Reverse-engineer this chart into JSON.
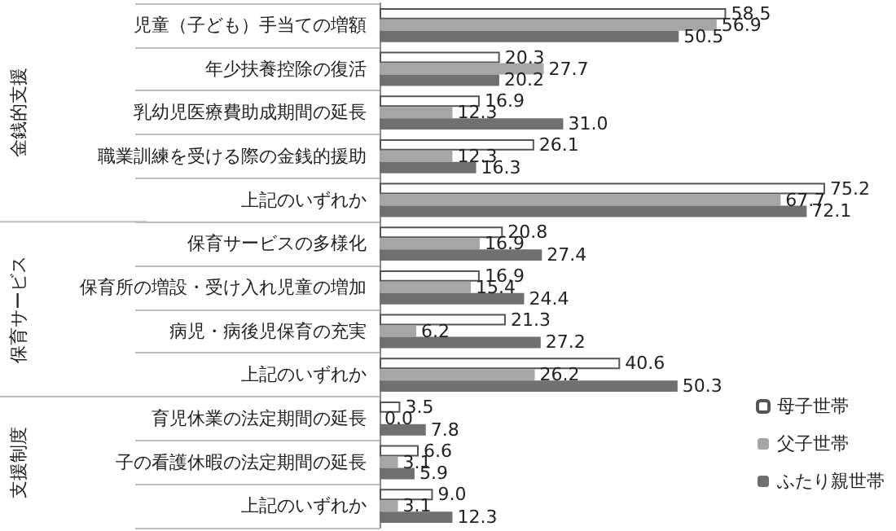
{
  "chart_data": {
    "type": "bar",
    "orientation": "horizontal",
    "grid": false,
    "legend": "bottom right",
    "categories": [
      "児童（子ども）手当ての増額",
      "年少扶養控除の復活",
      "乳幼児医療費助成期間の延長",
      "職業訓練を受ける際の金銭的援助",
      "上記のいずれか",
      "保育サービスの多様化",
      "保育所の増設・受け入れ児童の増加",
      "病児・病後児保育の充実",
      "上記のいずれか",
      "育児休業の法定期間の延長",
      "子の看護休暇の法定期間の延長",
      "上記のいずれか"
    ],
    "series": [
      {
        "name": "母子世帯",
        "color": "#ffffff",
        "values": [
          58.5,
          20.3,
          16.9,
          26.1,
          75.2,
          20.8,
          16.9,
          21.3,
          40.6,
          3.5,
          6.6,
          9.0
        ],
        "value_labels": [
          "58.5",
          "20.3",
          "16.9",
          "26.1",
          "75.2",
          "20.8",
          "16.9",
          "21.3",
          "40.6",
          "3.5",
          "6.6",
          "9.0"
        ]
      },
      {
        "name": "父子世帯",
        "color": "#a6a6a6",
        "values": [
          56.9,
          27.7,
          12.3,
          12.3,
          67.7,
          16.9,
          15.4,
          6.2,
          26.2,
          0.0,
          3.1,
          3.1
        ],
        "value_labels": [
          "56.9",
          "27.7",
          "12.3",
          "12.3",
          "67.7",
          "16.9",
          "15.4",
          "6.2",
          "26.2",
          "0.0",
          "3.1",
          "3.1"
        ]
      },
      {
        "name": "ふたり親世帯",
        "color": "#707070",
        "values": [
          50.5,
          20.2,
          31.0,
          16.3,
          72.1,
          27.4,
          24.4,
          27.2,
          50.3,
          7.8,
          5.9,
          12.3
        ],
        "value_labels": [
          "50.5",
          "20.2",
          "31.0",
          "16.3",
          "72.1",
          "27.4",
          "24.4",
          "27.2",
          "50.3",
          "7.8",
          "5.9",
          "12.3"
        ]
      }
    ],
    "annotations": [
      "金銭的支援",
      "保育サービス",
      "支援制度"
    ]
  }
}
